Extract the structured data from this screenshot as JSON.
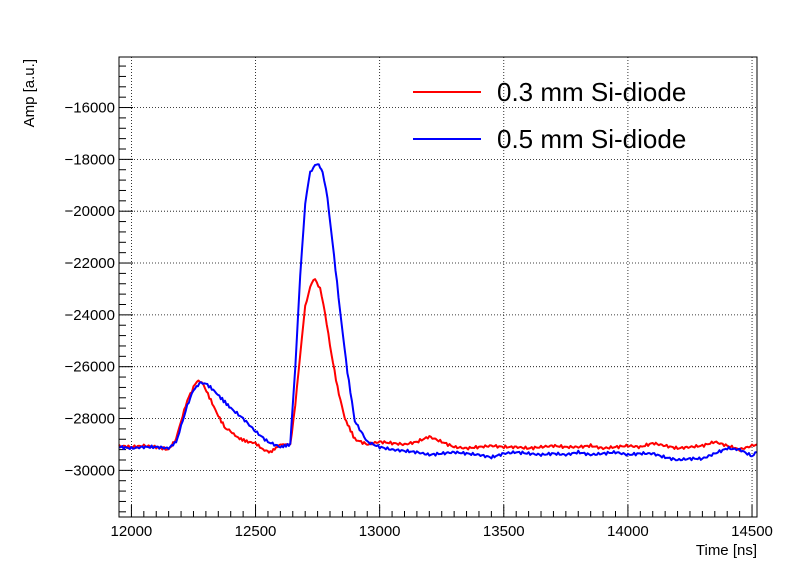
{
  "chart_data": {
    "type": "line",
    "xlabel": "Time [ns]",
    "ylabel": "Amp [a.u.]",
    "xlim": [
      11950,
      14520
    ],
    "ylim": [
      -31800,
      -14050
    ],
    "x_ticks": [
      12000,
      12500,
      13000,
      13500,
      14000,
      14500
    ],
    "y_ticks": [
      -30000,
      -28000,
      -26000,
      -24000,
      -22000,
      -20000,
      -18000,
      -16000
    ],
    "x_tick_labels": [
      "12000",
      "12500",
      "13000",
      "13500",
      "14000",
      "14500"
    ],
    "y_tick_labels": [
      "−30000",
      "−28000",
      "−26000",
      "−24000",
      "−22000",
      "−20000",
      "−18000",
      "−16000"
    ],
    "grid": true,
    "legend_position": "top-right",
    "series": [
      {
        "name": "0.3 mm Si-diode",
        "color": "#ff0000",
        "x": [
          11950,
          12000,
          12050,
          12100,
          12150,
          12180,
          12200,
          12225,
          12250,
          12270,
          12290,
          12320,
          12350,
          12380,
          12400,
          12430,
          12470,
          12500,
          12530,
          12560,
          12600,
          12640,
          12660,
          12680,
          12700,
          12720,
          12740,
          12760,
          12780,
          12800,
          12830,
          12860,
          12900,
          12950,
          13000,
          13050,
          13100,
          13150,
          13200,
          13250,
          13300,
          13350,
          13400,
          13450,
          13500,
          13550,
          13600,
          13650,
          13700,
          13750,
          13800,
          13850,
          13900,
          13950,
          14000,
          14050,
          14100,
          14150,
          14200,
          14250,
          14300,
          14350,
          14400,
          14450,
          14500,
          14520
        ],
        "y": [
          -29050,
          -29100,
          -29050,
          -29100,
          -29200,
          -28800,
          -28100,
          -27300,
          -26800,
          -26500,
          -26700,
          -27300,
          -27900,
          -28400,
          -28500,
          -28750,
          -28900,
          -28950,
          -29200,
          -29300,
          -29000,
          -29000,
          -27500,
          -25500,
          -23700,
          -22900,
          -22600,
          -23000,
          -23900,
          -25200,
          -26800,
          -28000,
          -28800,
          -29000,
          -28900,
          -28950,
          -29000,
          -28900,
          -28700,
          -28900,
          -29100,
          -29150,
          -29100,
          -29050,
          -29100,
          -29100,
          -29150,
          -29100,
          -29050,
          -29100,
          -29100,
          -29050,
          -29150,
          -29100,
          -29050,
          -29100,
          -28950,
          -29050,
          -29150,
          -29100,
          -29050,
          -28900,
          -29050,
          -29200,
          -29050,
          -29000
        ]
      },
      {
        "name": "0.5 mm Si-diode",
        "color": "#0000ff",
        "x": [
          11950,
          12000,
          12050,
          12100,
          12150,
          12180,
          12200,
          12225,
          12250,
          12280,
          12300,
          12330,
          12360,
          12400,
          12450,
          12500,
          12550,
          12600,
          12640,
          12660,
          12680,
          12700,
          12720,
          12740,
          12755,
          12770,
          12790,
          12810,
          12840,
          12870,
          12900,
          12950,
          13000,
          13050,
          13100,
          13150,
          13200,
          13250,
          13300,
          13350,
          13400,
          13450,
          13500,
          13550,
          13600,
          13650,
          13700,
          13750,
          13800,
          13850,
          13900,
          13950,
          14000,
          14050,
          14100,
          14150,
          14200,
          14250,
          14300,
          14350,
          14400,
          14450,
          14500,
          14520
        ],
        "y": [
          -29100,
          -29150,
          -29100,
          -29100,
          -29150,
          -28900,
          -28300,
          -27500,
          -26900,
          -26600,
          -26650,
          -26900,
          -27200,
          -27600,
          -28000,
          -28500,
          -28900,
          -29100,
          -29000,
          -26000,
          -22500,
          -19700,
          -18500,
          -18200,
          -18200,
          -18500,
          -19500,
          -21200,
          -23800,
          -26200,
          -28100,
          -28900,
          -29100,
          -29200,
          -29250,
          -29300,
          -29400,
          -29350,
          -29300,
          -29350,
          -29400,
          -29500,
          -29350,
          -29300,
          -29350,
          -29400,
          -29350,
          -29400,
          -29300,
          -29400,
          -29350,
          -29300,
          -29400,
          -29350,
          -29350,
          -29500,
          -29600,
          -29550,
          -29550,
          -29350,
          -29150,
          -29200,
          -29450,
          -29300
        ]
      }
    ]
  }
}
